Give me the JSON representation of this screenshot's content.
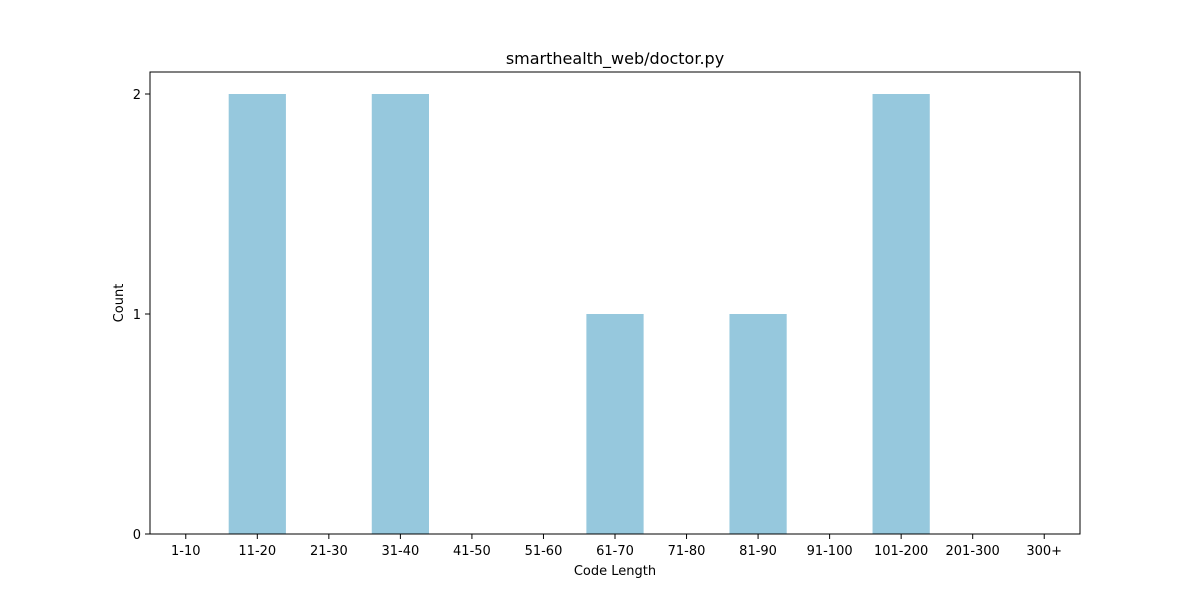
{
  "chart_data": {
    "type": "bar",
    "title": "smarthealth_web/doctor.py",
    "xlabel": "Code Length",
    "ylabel": "Count",
    "categories": [
      "1-10",
      "11-20",
      "21-30",
      "31-40",
      "41-50",
      "51-60",
      "61-70",
      "71-80",
      "81-90",
      "91-100",
      "101-200",
      "201-300",
      "300+"
    ],
    "values": [
      0,
      2,
      0,
      2,
      0,
      0,
      1,
      0,
      1,
      0,
      2,
      0,
      0
    ],
    "ylim": [
      0,
      2.1
    ],
    "yticks": [
      0,
      1,
      2
    ],
    "grid": false,
    "bar_color": "#96c8dd"
  }
}
